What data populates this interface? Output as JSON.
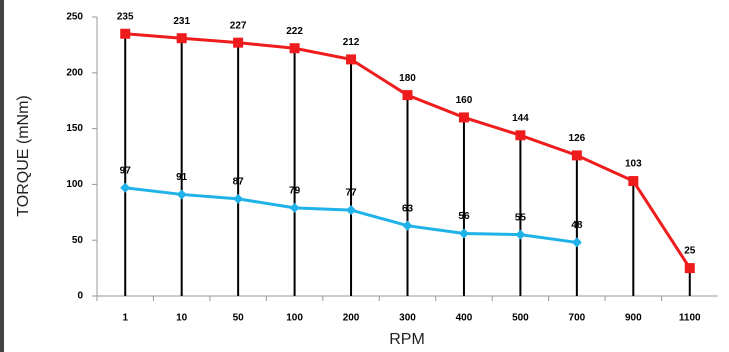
{
  "chart_data": {
    "type": "line",
    "x_label": "RPM",
    "y_label": "TORQUE (mNm)",
    "categories": [
      "1",
      "10",
      "50",
      "100",
      "200",
      "300",
      "400",
      "500",
      "700",
      "900",
      "1100"
    ],
    "series": [
      {
        "color": "#ee1c1c",
        "marker": "square",
        "values": [
          235,
          231,
          227,
          222,
          212,
          180,
          160,
          144,
          126,
          103,
          25
        ]
      },
      {
        "color": "#1fb2e8",
        "marker": "diamond",
        "values": [
          97,
          91,
          87,
          79,
          77,
          63,
          56,
          55,
          48,
          null,
          null
        ]
      }
    ],
    "drop_lines": true,
    "ylim": [
      0,
      250
    ],
    "yticks": [
      0,
      50,
      100,
      150,
      200,
      250
    ],
    "grid": false
  }
}
